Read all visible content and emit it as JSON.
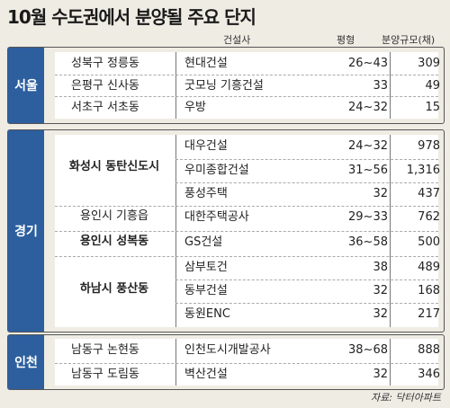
{
  "title": "10월 수도권에서 분양될 주요 단지",
  "headers": {
    "builder": "건설사",
    "size": "평형",
    "units": "분양규모(채)"
  },
  "groups": [
    {
      "region": "서울",
      "rows": [
        {
          "complex": "성북구 정릉동",
          "builder": "현대건설",
          "size": "26~43",
          "units": "309"
        },
        {
          "complex": "은평구 신사동",
          "builder": "굿모닝 기흥건설",
          "size": "33",
          "units": "49"
        },
        {
          "complex": "서초구 서초동",
          "builder": "우방",
          "size": "24~32",
          "units": "15"
        }
      ]
    },
    {
      "region": "경기",
      "complexes": [
        {
          "name": "화성시 동탄신도시",
          "bold": true
        },
        {
          "name": "용인시 기흥읍",
          "bold": false
        },
        {
          "name": "용인시 성복동",
          "bold": true
        },
        {
          "name": "하남시 풍산동",
          "bold": true
        }
      ],
      "rows": [
        {
          "builder": "대우건설",
          "size": "24~32",
          "units": "978"
        },
        {
          "builder": "우미종합건설",
          "size": "31~56",
          "units": "1,316"
        },
        {
          "builder": "풍성주택",
          "size": "32",
          "units": "437"
        },
        {
          "builder": "대한주택공사",
          "size": "29~33",
          "units": "762"
        },
        {
          "builder": "GS건설",
          "size": "36~58",
          "units": "500"
        },
        {
          "builder": "삼부토건",
          "size": "38",
          "units": "489"
        },
        {
          "builder": "동부건설",
          "size": "32",
          "units": "168"
        },
        {
          "builder": "동원ENC",
          "size": "32",
          "units": "217"
        }
      ]
    },
    {
      "region": "인천",
      "rows": [
        {
          "complex": "남동구 논현동",
          "builder": "인천도시개발공사",
          "size": "38~68",
          "units": "888"
        },
        {
          "complex": "남동구 도림동",
          "builder": "벽산건설",
          "size": "32",
          "units": "346"
        }
      ]
    }
  ],
  "source": "자료: 닥터아파트"
}
